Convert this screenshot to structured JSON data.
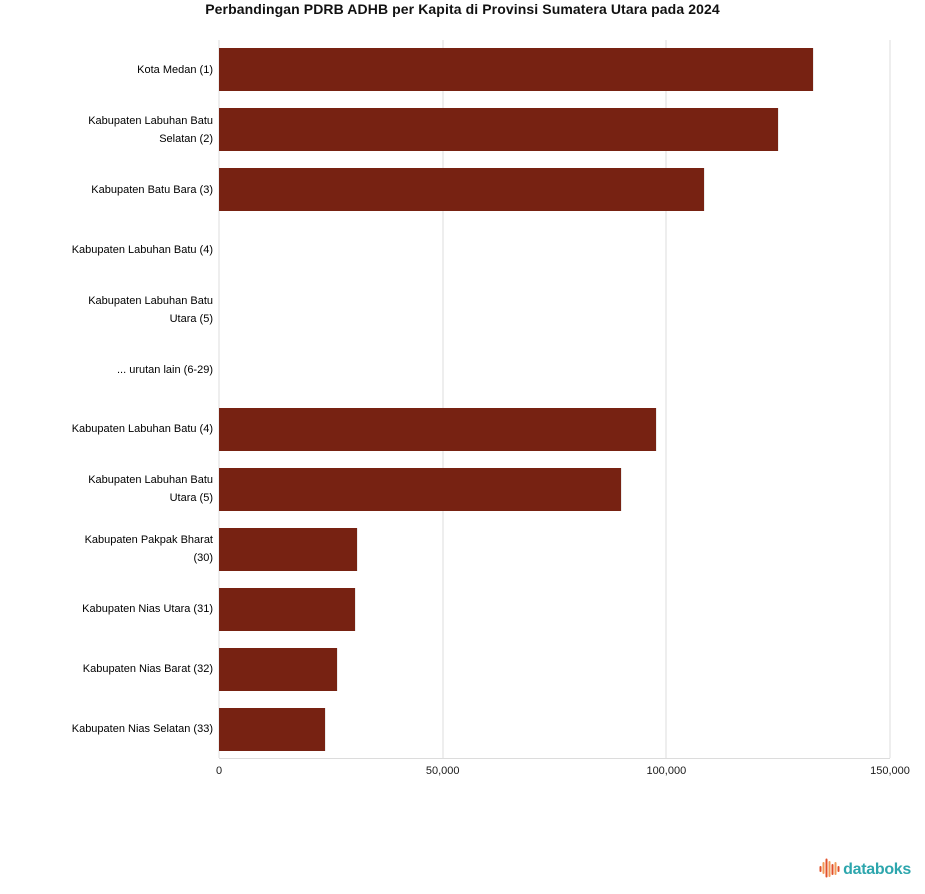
{
  "title": "Perbandingan PDRB ADHB per Kapita di Provinsi Sumatera Utara pada 2024",
  "colors": {
    "bar": "#772212",
    "grid": "#dcdcdc",
    "title_text": "#111111",
    "label_text": "#000000",
    "logo_teal": "#2da6ad",
    "logo_orange_dark": "#e2502a",
    "logo_orange_light": "#f29a57"
  },
  "chart_data": {
    "type": "bar",
    "orientation": "horizontal",
    "title": "Perbandingan PDRB ADHB per Kapita di Provinsi Sumatera Utara pada 2024",
    "xlabel": "",
    "ylabel": "",
    "xlim": [
      0,
      150000
    ],
    "grid": true,
    "categories": [
      "Kota Medan (1)",
      "Kabupaten Labuhan Batu\nSelatan (2)",
      "Kabupaten Batu Bara (3)",
      "Kabupaten Labuhan Batu (4)",
      "Kabupaten Labuhan Batu\nUtara (5)",
      "... urutan lain (6-29)",
      "Kabupaten Labuhan Batu (4)",
      "Kabupaten Labuhan Batu\nUtara (5)",
      "Kabupaten Pakpak Bharat\n(30)",
      "Kabupaten Nias Utara (31)",
      "Kabupaten Nias Barat (32)",
      "Kabupaten Nias Selatan (33)"
    ],
    "values": [
      132800,
      124900,
      108500,
      null,
      null,
      null,
      97800,
      89800,
      30800,
      30400,
      26300,
      23700
    ],
    "x_ticks": [
      {
        "value": 0,
        "label": "0"
      },
      {
        "value": 50000,
        "label": "50,000"
      },
      {
        "value": 100000,
        "label": "100,000"
      },
      {
        "value": 150000,
        "label": "150,000"
      }
    ]
  },
  "footer": {
    "brand": "databoks"
  }
}
